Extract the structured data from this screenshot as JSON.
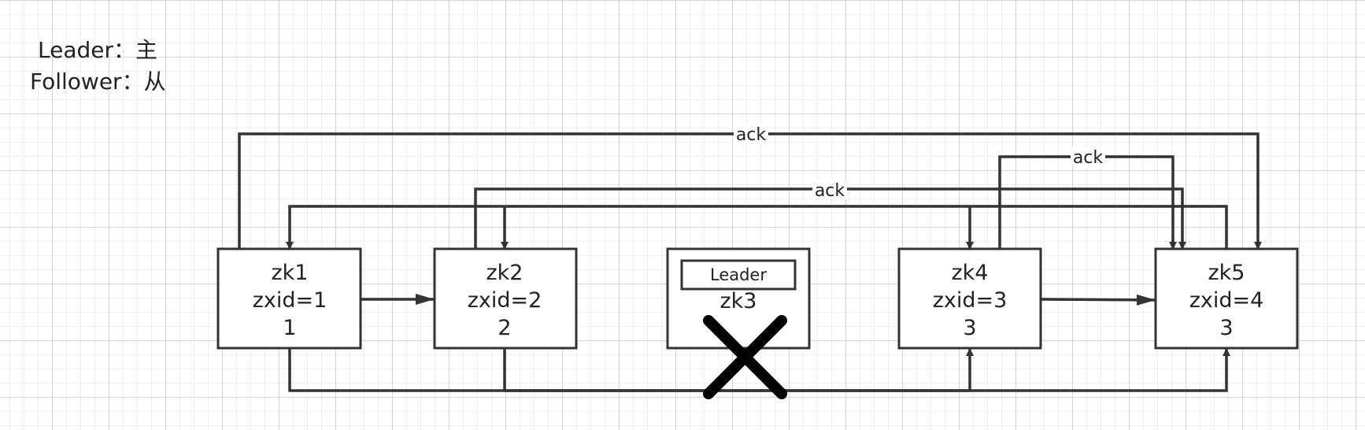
{
  "legend": {
    "leader": "Leader：主",
    "follower": "Follower：从"
  },
  "nodes": {
    "zk1": {
      "name": "zk1",
      "zxid": "zxid=1",
      "vote": "1"
    },
    "zk2": {
      "name": "zk2",
      "zxid": "zxid=2",
      "vote": "2"
    },
    "zk3": {
      "name": "zk3",
      "tag": "Leader"
    },
    "zk4": {
      "name": "zk4",
      "zxid": "zxid=3",
      "vote": "3"
    },
    "zk5": {
      "name": "zk5",
      "zxid": "zxid=4",
      "vote": "3"
    }
  },
  "edge_labels": {
    "ack_zk1_zk5": "ack",
    "ack_zk4_zk5": "ack",
    "ack_zk2_zk5": "ack"
  },
  "colors": {
    "stroke": "#333333",
    "cross": "#000000",
    "text": "#222222"
  }
}
